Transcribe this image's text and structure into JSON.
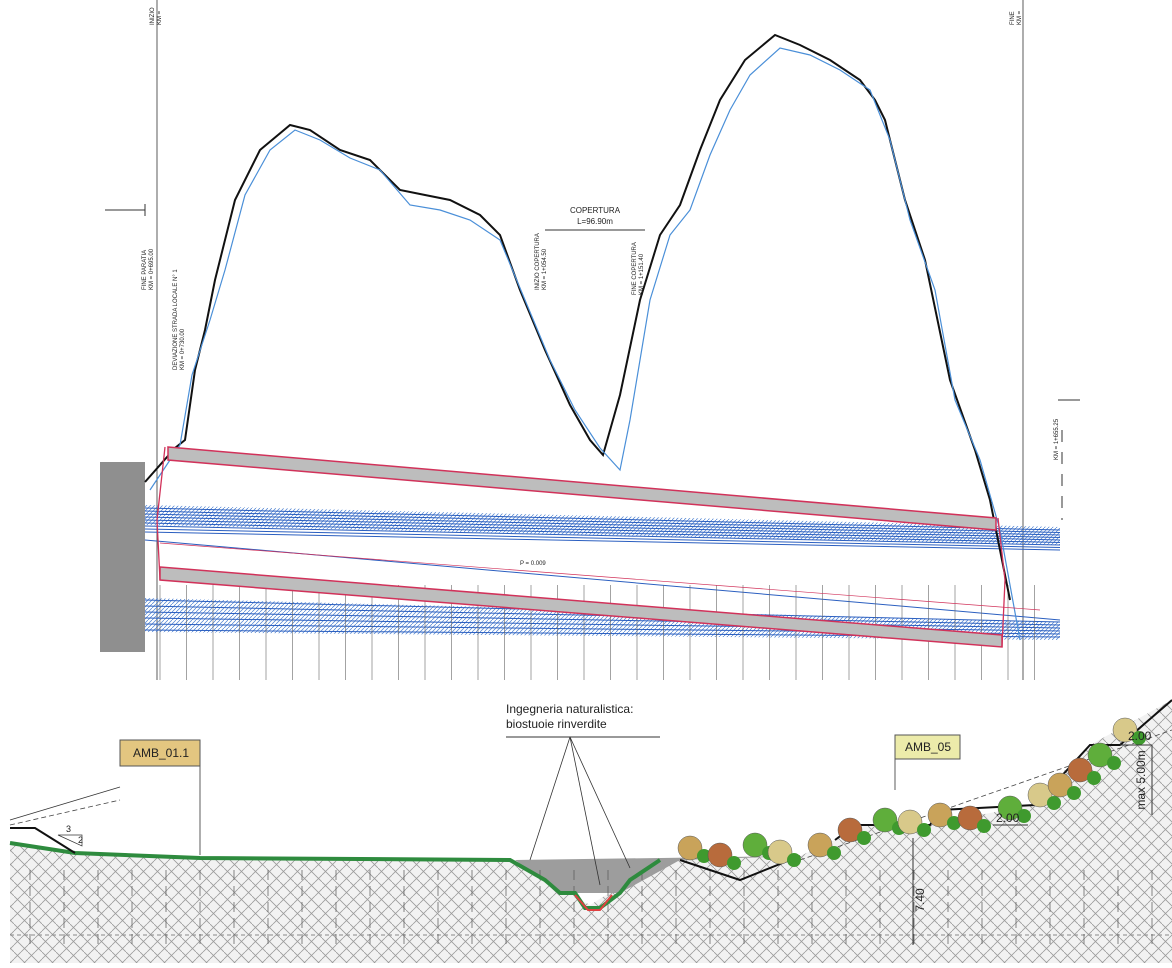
{
  "profile": {
    "start_label": {
      "line1": "INIZIO",
      "line2": "KM ="
    },
    "end_label": {
      "line1": "FINE",
      "line2": "KM ="
    },
    "copertura": {
      "title": "COPERTURA",
      "length": "L=96.90m"
    },
    "inizio_copertura": {
      "line1": "INIZIO COPERTURA",
      "line2": "KM = 1+054.50"
    },
    "fine_copertura": {
      "line1": "FINE COPERTURA",
      "line2": "KM = 1+151.40"
    },
    "fine_paratia": {
      "line1": "FINE PARATIA",
      "line2": "KM = 0+695.00"
    },
    "deviazione": {
      "line1": "DEVIAZIONE STRADA LOCALE N° 1",
      "line2": "KM = 0+730.00"
    },
    "km_end": "KM = 1+655.25",
    "slope": "P = 0.009"
  },
  "section": {
    "note": {
      "line1": "Ingegneria naturalistica:",
      "line2": "biostuoie rinverdite"
    },
    "tag_left": "AMB_01.1",
    "tag_right": "AMB_05",
    "berm_width_top": "2.00",
    "berm_width_mid": "2.00",
    "max_height": "max 5.00m",
    "depth": "7.40",
    "slope_h": "3",
    "slope_v": "2"
  }
}
